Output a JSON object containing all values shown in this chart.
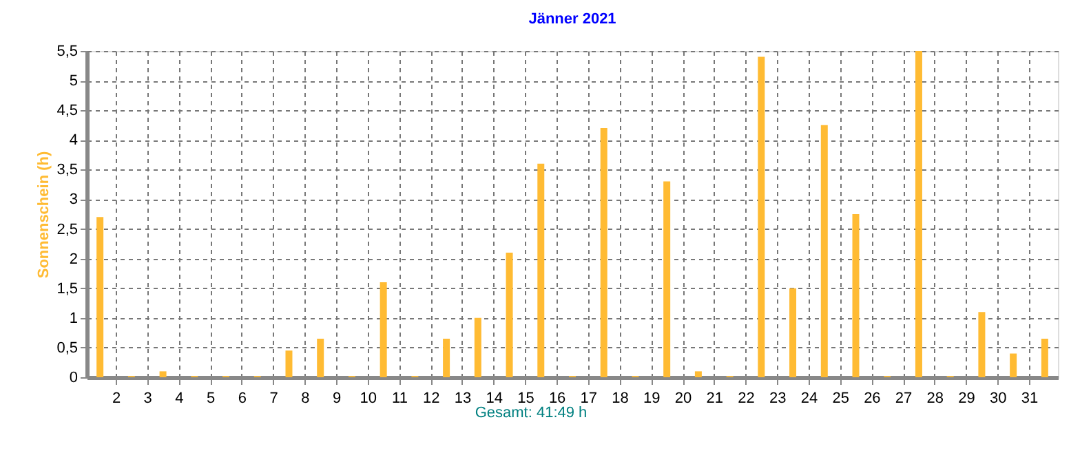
{
  "chart_data": {
    "type": "bar",
    "title": "Jänner 2021",
    "ylabel": "Sonnenschein  (h)",
    "x": [
      1.5,
      2.5,
      3.5,
      4.5,
      5.5,
      6.5,
      7.5,
      8.5,
      9.5,
      10.5,
      11.5,
      12.5,
      13.5,
      14.5,
      15.5,
      16.5,
      17.5,
      18.5,
      19.5,
      20.5,
      21.5,
      22.5,
      23.5,
      24.5,
      25.5,
      26.5,
      27.5,
      28.5,
      29.5,
      30.5,
      31.5
    ],
    "series": [
      {
        "color": "#ffbb33",
        "values": [
          2.7,
          0.02,
          0.1,
          0.02,
          0.02,
          0.02,
          0.45,
          0.65,
          0.02,
          1.6,
          0.02,
          0.65,
          1.0,
          2.1,
          3.6,
          0.02,
          4.2,
          0.02,
          3.3,
          0.1,
          0.02,
          5.4,
          1.5,
          4.25,
          2.75,
          0.02,
          5.5,
          0.02,
          1.1,
          0.4,
          0.65
        ]
      }
    ],
    "xlim": [
      1.3,
      31.7
    ],
    "xticks": [
      2,
      3,
      4,
      5,
      6,
      7,
      8,
      9,
      10,
      11,
      12,
      13,
      14,
      15,
      16,
      17,
      18,
      19,
      20,
      21,
      22,
      23,
      24,
      25,
      26,
      27,
      28,
      29,
      30,
      31
    ],
    "ylim": [
      0,
      5.5
    ],
    "yticks": [
      0,
      {
        "value": 0.5,
        "label": "0,5"
      },
      1,
      {
        "value": 1.5,
        "label": "1,5"
      },
      2,
      {
        "value": 2.5,
        "label": "2,5"
      },
      3,
      {
        "value": 3.5,
        "label": "3,5"
      },
      4,
      {
        "value": 4.5,
        "label": "4,5"
      },
      5,
      {
        "value": 5.5,
        "label": "5,5"
      }
    ],
    "grid": true,
    "annotations": [
      "Gesamt: 41:49 h"
    ]
  }
}
